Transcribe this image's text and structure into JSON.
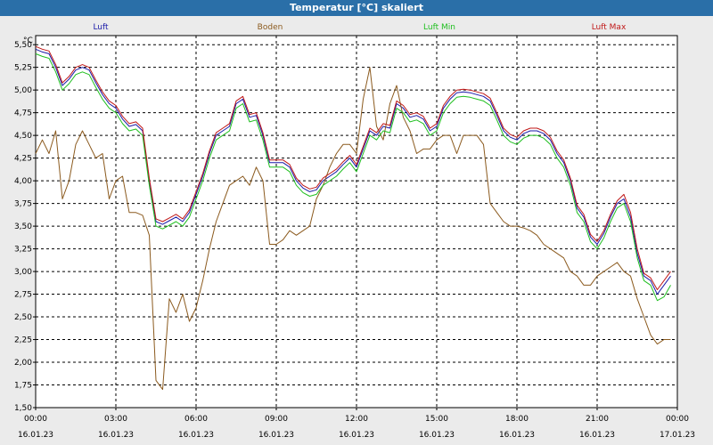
{
  "window": {
    "title": "Temperatur [°C] skaliert"
  },
  "chart_data": {
    "type": "line",
    "title": "Temperatur [°C] skaliert",
    "xlabel": "",
    "ylabel": "°C",
    "x_hours_range": [
      0,
      24
    ],
    "ylim": [
      1.5,
      5.6
    ],
    "grid": true,
    "y_ticks": [
      "1,50",
      "1,75",
      "2,00",
      "2,25",
      "2,50",
      "2,75",
      "3,00",
      "3,25",
      "3,50",
      "3,75",
      "4,00",
      "4,25",
      "4,50",
      "4,75",
      "5,00",
      "5,25",
      "5,50"
    ],
    "x_ticks": [
      {
        "time": "00:00",
        "date": "16.01.23"
      },
      {
        "time": "03:00",
        "date": "16.01.23"
      },
      {
        "time": "06:00",
        "date": "16.01.23"
      },
      {
        "time": "09:00",
        "date": "16.01.23"
      },
      {
        "time": "12:00",
        "date": "16.01.23"
      },
      {
        "time": "15:00",
        "date": "16.01.23"
      },
      {
        "time": "18:00",
        "date": "16.01.23"
      },
      {
        "time": "21:00",
        "date": "16.01.23"
      },
      {
        "time": "00:00",
        "date": "17.01.23"
      }
    ],
    "series": [
      {
        "name": "Luft",
        "color": "#1a1aa8",
        "x": [
          0,
          0.25,
          0.5,
          0.75,
          1,
          1.25,
          1.5,
          1.75,
          2,
          2.25,
          2.5,
          2.75,
          3,
          3.25,
          3.5,
          3.75,
          4,
          4.25,
          4.5,
          4.75,
          5,
          5.25,
          5.5,
          5.75,
          6,
          6.25,
          6.5,
          6.75,
          7,
          7.25,
          7.5,
          7.75,
          8,
          8.25,
          8.5,
          8.75,
          9,
          9.25,
          9.5,
          9.75,
          10,
          10.25,
          10.5,
          10.75,
          11,
          11.25,
          11.5,
          11.75,
          12,
          12.25,
          12.5,
          12.75,
          13,
          13.25,
          13.5,
          13.75,
          14,
          14.25,
          14.5,
          14.75,
          15,
          15.25,
          15.5,
          15.75,
          16,
          16.25,
          16.5,
          16.75,
          17,
          17.25,
          17.5,
          17.75,
          18,
          18.25,
          18.5,
          18.75,
          19,
          19.25,
          19.5,
          19.75,
          20,
          20.25,
          20.5,
          20.75,
          21,
          21.25,
          21.5,
          21.75,
          22,
          22.25,
          22.5,
          22.75,
          23,
          23.25,
          23.5,
          23.75
        ],
        "y": [
          5.45,
          5.42,
          5.4,
          5.25,
          5.05,
          5.12,
          5.22,
          5.25,
          5.22,
          5.08,
          4.95,
          4.85,
          4.8,
          4.68,
          4.6,
          4.62,
          4.55,
          4.0,
          3.55,
          3.52,
          3.56,
          3.6,
          3.55,
          3.65,
          3.85,
          4.05,
          4.3,
          4.5,
          4.55,
          4.6,
          4.85,
          4.9,
          4.7,
          4.72,
          4.5,
          4.2,
          4.2,
          4.2,
          4.15,
          4.0,
          3.92,
          3.88,
          3.9,
          4.0,
          4.05,
          4.1,
          4.18,
          4.25,
          4.15,
          4.35,
          4.55,
          4.5,
          4.6,
          4.58,
          4.85,
          4.8,
          4.7,
          4.72,
          4.68,
          4.55,
          4.6,
          4.8,
          4.9,
          4.97,
          4.98,
          4.97,
          4.95,
          4.93,
          4.88,
          4.72,
          4.55,
          4.48,
          4.45,
          4.52,
          4.55,
          4.55,
          4.52,
          4.45,
          4.3,
          4.2,
          4.0,
          3.7,
          3.6,
          3.38,
          3.3,
          3.42,
          3.6,
          3.75,
          3.8,
          3.6,
          3.2,
          2.95,
          2.9,
          2.75,
          2.85,
          2.95
        ]
      },
      {
        "name": "Boden",
        "color": "#8b5a1e",
        "x": [
          0,
          0.25,
          0.5,
          0.75,
          1,
          1.25,
          1.5,
          1.75,
          2,
          2.25,
          2.5,
          2.75,
          3,
          3.25,
          3.5,
          3.75,
          4,
          4.25,
          4.5,
          4.75,
          5,
          5.25,
          5.5,
          5.75,
          6,
          6.25,
          6.5,
          6.75,
          7,
          7.25,
          7.5,
          7.75,
          8,
          8.25,
          8.5,
          8.75,
          9,
          9.25,
          9.5,
          9.75,
          10,
          10.25,
          10.5,
          10.75,
          11,
          11.25,
          11.5,
          11.75,
          12,
          12.25,
          12.5,
          12.75,
          13,
          13.25,
          13.5,
          13.75,
          14,
          14.25,
          14.5,
          14.75,
          15,
          15.25,
          15.5,
          15.75,
          16,
          16.25,
          16.5,
          16.75,
          17,
          17.25,
          17.5,
          17.75,
          18,
          18.25,
          18.5,
          18.75,
          19,
          19.25,
          19.5,
          19.75,
          20,
          20.25,
          20.5,
          20.75,
          21,
          21.25,
          21.5,
          21.75,
          22,
          22.25,
          22.5,
          22.75,
          23,
          23.25,
          23.5,
          23.75
        ],
        "y": [
          4.3,
          4.45,
          4.3,
          4.55,
          3.8,
          4.0,
          4.4,
          4.55,
          4.4,
          4.25,
          4.3,
          3.8,
          4.0,
          4.05,
          3.65,
          3.65,
          3.62,
          3.4,
          1.8,
          1.7,
          2.7,
          2.55,
          2.75,
          2.45,
          2.6,
          2.9,
          3.25,
          3.55,
          3.75,
          3.95,
          4.0,
          4.05,
          3.95,
          4.15,
          4.0,
          3.3,
          3.3,
          3.35,
          3.45,
          3.4,
          3.45,
          3.5,
          3.8,
          3.95,
          4.15,
          4.3,
          4.4,
          4.4,
          4.3,
          4.9,
          5.25,
          4.6,
          4.45,
          4.85,
          5.05,
          4.7,
          4.55,
          4.3,
          4.35,
          4.35,
          4.45,
          4.5,
          4.5,
          4.3,
          4.5,
          4.5,
          4.5,
          4.4,
          3.75,
          3.65,
          3.55,
          3.5,
          3.5,
          3.48,
          3.45,
          3.4,
          3.3,
          3.25,
          3.2,
          3.15,
          3.0,
          2.95,
          2.85,
          2.85,
          2.95,
          3.0,
          3.05,
          3.1,
          3.0,
          2.95,
          2.7,
          2.5,
          2.3,
          2.2,
          2.25,
          2.25
        ]
      },
      {
        "name": "Luft Min",
        "color": "#1fbf1f",
        "x": [
          0,
          0.25,
          0.5,
          0.75,
          1,
          1.25,
          1.5,
          1.75,
          2,
          2.25,
          2.5,
          2.75,
          3,
          3.25,
          3.5,
          3.75,
          4,
          4.25,
          4.5,
          4.75,
          5,
          5.25,
          5.5,
          5.75,
          6,
          6.25,
          6.5,
          6.75,
          7,
          7.25,
          7.5,
          7.75,
          8,
          8.25,
          8.5,
          8.75,
          9,
          9.25,
          9.5,
          9.75,
          10,
          10.25,
          10.5,
          10.75,
          11,
          11.25,
          11.5,
          11.75,
          12,
          12.25,
          12.5,
          12.75,
          13,
          13.25,
          13.5,
          13.75,
          14,
          14.25,
          14.5,
          14.75,
          15,
          15.25,
          15.5,
          15.75,
          16,
          16.25,
          16.5,
          16.75,
          17,
          17.25,
          17.5,
          17.75,
          18,
          18.25,
          18.5,
          18.75,
          19,
          19.25,
          19.5,
          19.75,
          20,
          20.25,
          20.5,
          20.75,
          21,
          21.25,
          21.5,
          21.75,
          22,
          22.25,
          22.5,
          22.75,
          23,
          23.25,
          23.5,
          23.75
        ],
        "y": [
          5.4,
          5.37,
          5.35,
          5.2,
          5.0,
          5.07,
          5.17,
          5.2,
          5.17,
          5.03,
          4.9,
          4.8,
          4.75,
          4.63,
          4.55,
          4.57,
          4.5,
          3.95,
          3.5,
          3.47,
          3.51,
          3.55,
          3.5,
          3.6,
          3.8,
          4.0,
          4.25,
          4.45,
          4.5,
          4.55,
          4.8,
          4.85,
          4.65,
          4.67,
          4.45,
          4.15,
          4.15,
          4.15,
          4.1,
          3.95,
          3.87,
          3.83,
          3.85,
          3.95,
          4.0,
          4.05,
          4.13,
          4.2,
          4.1,
          4.3,
          4.5,
          4.45,
          4.55,
          4.53,
          4.8,
          4.75,
          4.65,
          4.67,
          4.63,
          4.5,
          4.55,
          4.75,
          4.85,
          4.92,
          4.93,
          4.92,
          4.9,
          4.88,
          4.83,
          4.67,
          4.5,
          4.43,
          4.4,
          4.47,
          4.5,
          4.5,
          4.47,
          4.4,
          4.25,
          4.15,
          3.95,
          3.65,
          3.55,
          3.33,
          3.25,
          3.37,
          3.55,
          3.7,
          3.75,
          3.55,
          3.15,
          2.9,
          2.85,
          2.68,
          2.72,
          2.85
        ]
      },
      {
        "name": "Luft Max",
        "color": "#c01818",
        "x": [
          0,
          0.25,
          0.5,
          0.75,
          1,
          1.25,
          1.5,
          1.75,
          2,
          2.25,
          2.5,
          2.75,
          3,
          3.25,
          3.5,
          3.75,
          4,
          4.25,
          4.5,
          4.75,
          5,
          5.25,
          5.5,
          5.75,
          6,
          6.25,
          6.5,
          6.75,
          7,
          7.25,
          7.5,
          7.75,
          8,
          8.25,
          8.5,
          8.75,
          9,
          9.25,
          9.5,
          9.75,
          10,
          10.25,
          10.5,
          10.75,
          11,
          11.25,
          11.5,
          11.75,
          12,
          12.25,
          12.5,
          12.75,
          13,
          13.25,
          13.5,
          13.75,
          14,
          14.25,
          14.5,
          14.75,
          15,
          15.25,
          15.5,
          15.75,
          16,
          16.25,
          16.5,
          16.75,
          17,
          17.25,
          17.5,
          17.75,
          18,
          18.25,
          18.5,
          18.75,
          19,
          19.25,
          19.5,
          19.75,
          20,
          20.25,
          20.5,
          20.75,
          21,
          21.25,
          21.5,
          21.75,
          22,
          22.25,
          22.5,
          22.75,
          23,
          23.25,
          23.5,
          23.75
        ],
        "y": [
          5.48,
          5.45,
          5.43,
          5.28,
          5.08,
          5.15,
          5.25,
          5.28,
          5.25,
          5.11,
          4.98,
          4.88,
          4.83,
          4.71,
          4.63,
          4.65,
          4.58,
          4.03,
          3.58,
          3.55,
          3.59,
          3.63,
          3.58,
          3.68,
          3.88,
          4.08,
          4.33,
          4.53,
          4.58,
          4.63,
          4.88,
          4.93,
          4.73,
          4.75,
          4.53,
          4.23,
          4.23,
          4.23,
          4.18,
          4.03,
          3.95,
          3.91,
          3.93,
          4.03,
          4.08,
          4.13,
          4.21,
          4.28,
          4.18,
          4.38,
          4.58,
          4.53,
          4.63,
          4.61,
          4.88,
          4.83,
          4.73,
          4.75,
          4.71,
          4.58,
          4.63,
          4.83,
          4.93,
          5.0,
          5.01,
          5.0,
          4.98,
          4.96,
          4.91,
          4.75,
          4.58,
          4.51,
          4.48,
          4.55,
          4.58,
          4.58,
          4.55,
          4.48,
          4.33,
          4.23,
          4.03,
          3.73,
          3.63,
          3.41,
          3.33,
          3.45,
          3.63,
          3.78,
          3.85,
          3.65,
          3.25,
          2.98,
          2.93,
          2.8,
          2.9,
          3.0
        ]
      }
    ]
  }
}
